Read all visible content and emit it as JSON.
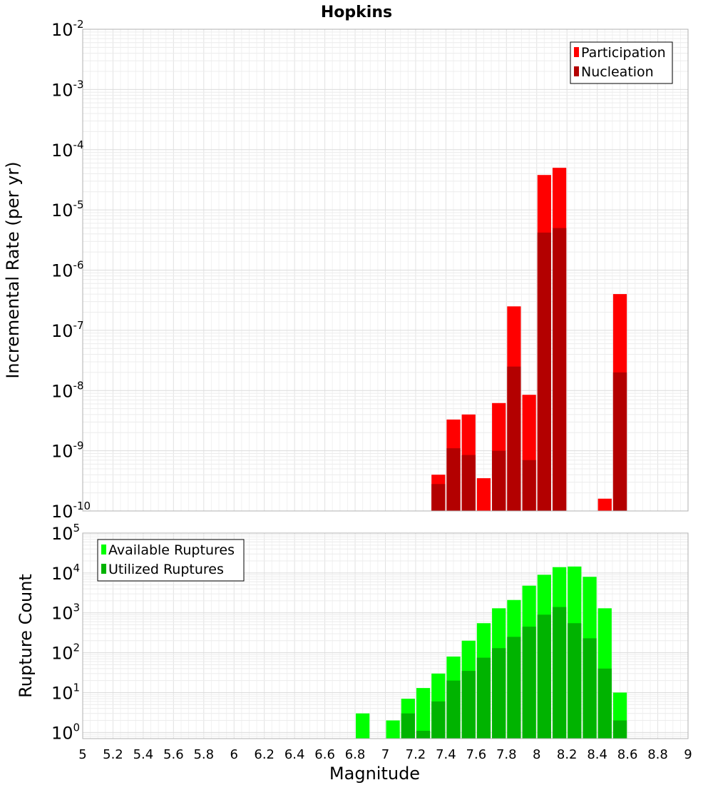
{
  "chart_data": [
    {
      "type": "bar",
      "title": "Hopkins",
      "xlabel": "",
      "ylabel": "Incremental Rate (per yr)",
      "xlim": [
        5,
        9
      ],
      "ylim": [
        1e-10,
        0.01
      ],
      "yscale": "log",
      "grid": true,
      "legend_position": "top-right",
      "legend": [
        "Participation",
        "Nucleation"
      ],
      "y_tick_labels": [
        {
          "base": "10",
          "exp": "-10"
        },
        {
          "base": "10",
          "exp": "-9"
        },
        {
          "base": "10",
          "exp": "-8"
        },
        {
          "base": "10",
          "exp": "-7"
        },
        {
          "base": "10",
          "exp": "-6"
        },
        {
          "base": "10",
          "exp": "-5"
        },
        {
          "base": "10",
          "exp": "-4"
        },
        {
          "base": "10",
          "exp": "-3"
        },
        {
          "base": "10",
          "exp": "-2"
        }
      ],
      "bin_width": 0.1,
      "series": [
        {
          "name": "Participation",
          "color": "#ff0000",
          "points": [
            {
              "x": 7.35,
              "y": 4e-10
            },
            {
              "x": 7.45,
              "y": 3.3e-09
            },
            {
              "x": 7.55,
              "y": 4e-09
            },
            {
              "x": 7.65,
              "y": 3.5e-10
            },
            {
              "x": 7.75,
              "y": 6.2e-09
            },
            {
              "x": 7.85,
              "y": 2.5e-07
            },
            {
              "x": 7.95,
              "y": 8.5e-09
            },
            {
              "x": 8.05,
              "y": 3.8e-05
            },
            {
              "x": 8.15,
              "y": 5e-05
            },
            {
              "x": 8.45,
              "y": 1.6e-10
            },
            {
              "x": 8.55,
              "y": 4e-07
            }
          ]
        },
        {
          "name": "Nucleation",
          "color": "#b30000",
          "points": [
            {
              "x": 7.35,
              "y": 2.8e-10
            },
            {
              "x": 7.45,
              "y": 1.1e-09
            },
            {
              "x": 7.55,
              "y": 8.5e-10
            },
            {
              "x": 7.75,
              "y": 1e-09
            },
            {
              "x": 7.85,
              "y": 2.5e-08
            },
            {
              "x": 7.95,
              "y": 7e-10
            },
            {
              "x": 8.05,
              "y": 4.2e-06
            },
            {
              "x": 8.15,
              "y": 5e-06
            },
            {
              "x": 8.55,
              "y": 2e-08
            }
          ]
        }
      ]
    },
    {
      "type": "bar",
      "title": "",
      "xlabel": "Magnitude",
      "ylabel": "Rupture Count",
      "xlim": [
        5,
        9
      ],
      "ylim": [
        0.7,
        100000.0
      ],
      "yscale": "log",
      "grid": true,
      "legend_position": "top-left",
      "legend": [
        "Available Ruptures",
        "Utilized Ruptures"
      ],
      "x_tick_labels": [
        "5",
        "5.2",
        "5.4",
        "5.6",
        "5.8",
        "6",
        "6.2",
        "6.4",
        "6.6",
        "6.8",
        "7",
        "7.2",
        "7.4",
        "7.6",
        "7.8",
        "8",
        "8.2",
        "8.4",
        "8.6",
        "8.8",
        "9"
      ],
      "y_tick_labels": [
        {
          "base": "10",
          "exp": "0"
        },
        {
          "base": "10",
          "exp": "1"
        },
        {
          "base": "10",
          "exp": "2"
        },
        {
          "base": "10",
          "exp": "3"
        },
        {
          "base": "10",
          "exp": "4"
        },
        {
          "base": "10",
          "exp": "5"
        }
      ],
      "bin_width": 0.1,
      "series": [
        {
          "name": "Available Ruptures",
          "color": "#00ff00",
          "points": [
            {
              "x": 6.85,
              "y": 3
            },
            {
              "x": 7.05,
              "y": 2
            },
            {
              "x": 7.15,
              "y": 7
            },
            {
              "x": 7.25,
              "y": 13
            },
            {
              "x": 7.35,
              "y": 30
            },
            {
              "x": 7.45,
              "y": 80
            },
            {
              "x": 7.55,
              "y": 200
            },
            {
              "x": 7.65,
              "y": 550
            },
            {
              "x": 7.75,
              "y": 1300
            },
            {
              "x": 7.85,
              "y": 2100
            },
            {
              "x": 7.95,
              "y": 4800
            },
            {
              "x": 8.05,
              "y": 9000
            },
            {
              "x": 8.15,
              "y": 14000
            },
            {
              "x": 8.25,
              "y": 14500
            },
            {
              "x": 8.35,
              "y": 8000
            },
            {
              "x": 8.45,
              "y": 1300
            },
            {
              "x": 8.55,
              "y": 10
            }
          ]
        },
        {
          "name": "Utilized Ruptures",
          "color": "#00b300",
          "points": [
            {
              "x": 7.15,
              "y": 3
            },
            {
              "x": 7.25,
              "y": 1.1
            },
            {
              "x": 7.35,
              "y": 6
            },
            {
              "x": 7.45,
              "y": 20
            },
            {
              "x": 7.55,
              "y": 35
            },
            {
              "x": 7.65,
              "y": 75
            },
            {
              "x": 7.75,
              "y": 130
            },
            {
              "x": 7.85,
              "y": 250
            },
            {
              "x": 7.95,
              "y": 450
            },
            {
              "x": 8.05,
              "y": 900
            },
            {
              "x": 8.15,
              "y": 1400
            },
            {
              "x": 8.25,
              "y": 550
            },
            {
              "x": 8.35,
              "y": 230
            },
            {
              "x": 8.45,
              "y": 40
            },
            {
              "x": 8.55,
              "y": 2
            }
          ]
        }
      ]
    }
  ]
}
